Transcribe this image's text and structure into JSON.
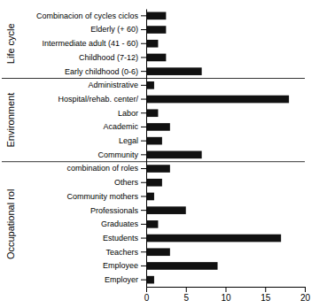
{
  "chart_data": {
    "type": "bar",
    "orientation": "horizontal",
    "categories": [
      "Combinacion of cycles ciclos",
      "Elderly (+ 60)",
      "Intermediate adult (41 - 60)",
      "Childhood (7-12)",
      "Early childhood (0-6)",
      "Administrative",
      "Hospital/rehab. center/",
      "Labor",
      "Academic",
      "Legal",
      "Community",
      "combination of roles",
      "Others",
      "Community mothers",
      "Professionals",
      "Graduates",
      "Estudents",
      "Teachers",
      "Employee",
      "Employer"
    ],
    "values": [
      2.5,
      2.5,
      1.5,
      2.5,
      7,
      1,
      18,
      1.5,
      3,
      2,
      7,
      3,
      2,
      1,
      5,
      1.5,
      17,
      3,
      9,
      1
    ],
    "groups": [
      {
        "label": "Life cycle",
        "start": 0,
        "end": 4
      },
      {
        "label": "Environment",
        "start": 5,
        "end": 10
      },
      {
        "label": "Occupational rol",
        "start": 11,
        "end": 19
      }
    ],
    "color": "#111111",
    "xlim": [
      0,
      20
    ],
    "xticks": [
      0,
      5,
      10,
      15,
      20
    ],
    "grid": false
  }
}
